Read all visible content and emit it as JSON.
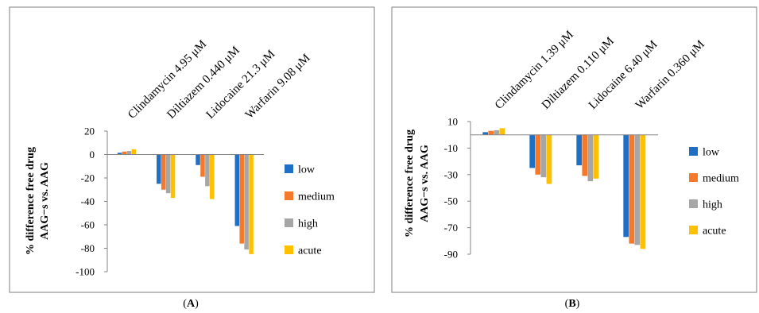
{
  "chart_data": [
    {
      "type": "bar",
      "panel_label": "(A)",
      "panel_letter": "A",
      "categories": [
        "Clindamycin 4.95 μM",
        "Diltiazem 0.440 μM",
        "Lidocaine 21.3 μM",
        "Warfarin 9.08 μM"
      ],
      "series": [
        {
          "name": "low",
          "values": [
            1.5,
            -25,
            -9,
            -61
          ]
        },
        {
          "name": "medium",
          "values": [
            2.5,
            -30,
            -19,
            -76
          ]
        },
        {
          "name": "high",
          "values": [
            3,
            -33,
            -27,
            -81
          ]
        },
        {
          "name": "acute",
          "values": [
            4.5,
            -37,
            -38,
            -85
          ]
        }
      ],
      "ylabel_line1": "% difference free drug",
      "ylabel_line2": "AAG−s vs. AAG",
      "ylim": [
        -100,
        20
      ],
      "yticks": [
        "20",
        "0",
        "-20",
        "-40",
        "-60",
        "-80",
        "-100"
      ],
      "ytick_values": [
        20,
        0,
        -20,
        -40,
        -60,
        -80,
        -100
      ],
      "legend_placement": "right"
    },
    {
      "type": "bar",
      "panel_label": "(B)",
      "panel_letter": "B",
      "categories": [
        "Clindamycin 1.39 μM",
        "Diltiazem 0.110 μM",
        "Lidocaine 6.40 μM",
        "Warfarin 0.360 μM"
      ],
      "series": [
        {
          "name": "low",
          "values": [
            2,
            -25,
            -23,
            -77
          ]
        },
        {
          "name": "medium",
          "values": [
            3,
            -30,
            -31,
            -82
          ]
        },
        {
          "name": "high",
          "values": [
            3.5,
            -32,
            -35,
            -83
          ]
        },
        {
          "name": "acute",
          "values": [
            5,
            -37,
            -33,
            -86
          ]
        }
      ],
      "ylabel_line1": "% difference free drug",
      "ylabel_line2": "AAG−s vs. AAG",
      "ylim": [
        -90,
        10
      ],
      "yticks": [
        "10",
        "-10",
        "-30",
        "-50",
        "-70",
        "-90"
      ],
      "ytick_values": [
        10,
        -10,
        -30,
        -50,
        -70,
        -90
      ],
      "legend_placement": "right"
    }
  ],
  "colors": {
    "low": "#1F6FC5",
    "medium": "#F4792A",
    "high": "#A6A6A6",
    "acute": "#FFC000",
    "axis": "#868686",
    "frame": "#7F7F7F"
  }
}
